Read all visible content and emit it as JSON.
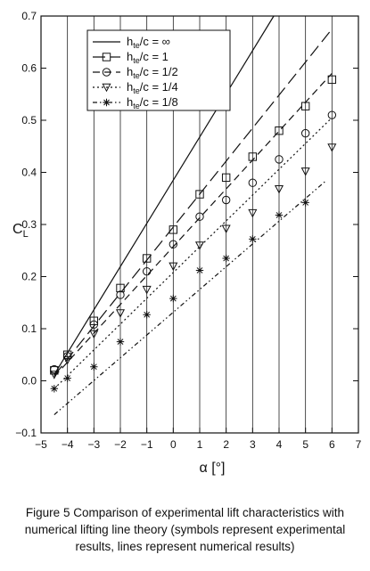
{
  "caption": "Figure 5 Comparison of experimental lift characteristics with numerical lifting line theory (symbols represent experimental results, lines represent numerical results)",
  "chart_data": {
    "type": "scatter",
    "xlabel": "α [°]",
    "ylabel": "C",
    "ylabel_subscript": "L",
    "xlim": [
      -5,
      7
    ],
    "ylim": [
      -0.1,
      0.7
    ],
    "xticks": [
      "-5",
      "-4",
      "-3",
      "-2",
      "-1",
      "0",
      "1",
      "2",
      "3",
      "4",
      "5",
      "6",
      "7"
    ],
    "yticks": [
      "-0.1",
      "0.0",
      "0.1",
      "0.2",
      "0.3",
      "0.4",
      "0.5",
      "0.6",
      "0.7"
    ],
    "grid": "vertical",
    "legend_position": "top-left",
    "series": [
      {
        "label_main": "h",
        "label_sub": "te",
        "label_ratio": "/c = ∞",
        "line_style": "solid",
        "marker": "none",
        "line": {
          "x": [
            -4.5,
            3.8
          ],
          "y": [
            0.012,
            0.7
          ]
        },
        "points": {
          "x": [],
          "y": []
        }
      },
      {
        "label_main": "h",
        "label_sub": "te",
        "label_ratio": "/c = 1",
        "line_style": "long-dash",
        "marker": "square",
        "line": {
          "x": [
            -4.5,
            6.0
          ],
          "y": [
            0.01,
            0.675
          ]
        },
        "points": {
          "x": [
            -4.5,
            -4.0,
            -3.0,
            -2.0,
            -1.0,
            0.0,
            1.0,
            2.0,
            3.0,
            4.0,
            5.0,
            6.0
          ],
          "y": [
            0.02,
            0.05,
            0.115,
            0.178,
            0.235,
            0.29,
            0.358,
            0.39,
            0.43,
            0.48,
            0.527,
            0.578
          ]
        }
      },
      {
        "label_main": "h",
        "label_sub": "te",
        "label_ratio": "/c = 1/2",
        "line_style": "dash",
        "marker": "circle",
        "line": {
          "x": [
            -4.5,
            6.0
          ],
          "y": [
            0.008,
            0.59
          ]
        },
        "points": {
          "x": [
            -4.5,
            -4.0,
            -3.0,
            -2.0,
            -1.0,
            0.0,
            1.0,
            2.0,
            3.0,
            4.0,
            5.0,
            6.0
          ],
          "y": [
            0.022,
            0.047,
            0.108,
            0.165,
            0.21,
            0.262,
            0.315,
            0.347,
            0.38,
            0.425,
            0.475,
            0.51
          ]
        }
      },
      {
        "label_main": "h",
        "label_sub": "te",
        "label_ratio": "/c = 1/4",
        "line_style": "dotted",
        "marker": "triangle-down",
        "line": {
          "x": [
            -4.5,
            6.0
          ],
          "y": [
            -0.015,
            0.505
          ]
        },
        "points": {
          "x": [
            -4.5,
            -4.0,
            -3.0,
            -2.0,
            -1.0,
            0.0,
            1.0,
            2.0,
            3.0,
            4.0,
            5.0,
            6.0
          ],
          "y": [
            0.012,
            0.04,
            0.09,
            0.13,
            0.175,
            0.22,
            0.26,
            0.292,
            0.322,
            0.368,
            0.402,
            0.448
          ]
        }
      },
      {
        "label_main": "h",
        "label_sub": "te",
        "label_ratio": "/c = 1/8",
        "line_style": "dash-dot-dot",
        "marker": "asterisk",
        "line": {
          "x": [
            -4.5,
            5.8
          ],
          "y": [
            -0.065,
            0.385
          ]
        },
        "points": {
          "x": [
            -4.5,
            -4.0,
            -3.0,
            -2.0,
            -1.0,
            0.0,
            1.0,
            2.0,
            3.0,
            4.0,
            5.0
          ],
          "y": [
            -0.015,
            0.005,
            0.027,
            0.075,
            0.127,
            0.158,
            0.212,
            0.235,
            0.272,
            0.318,
            0.342
          ]
        }
      }
    ]
  }
}
